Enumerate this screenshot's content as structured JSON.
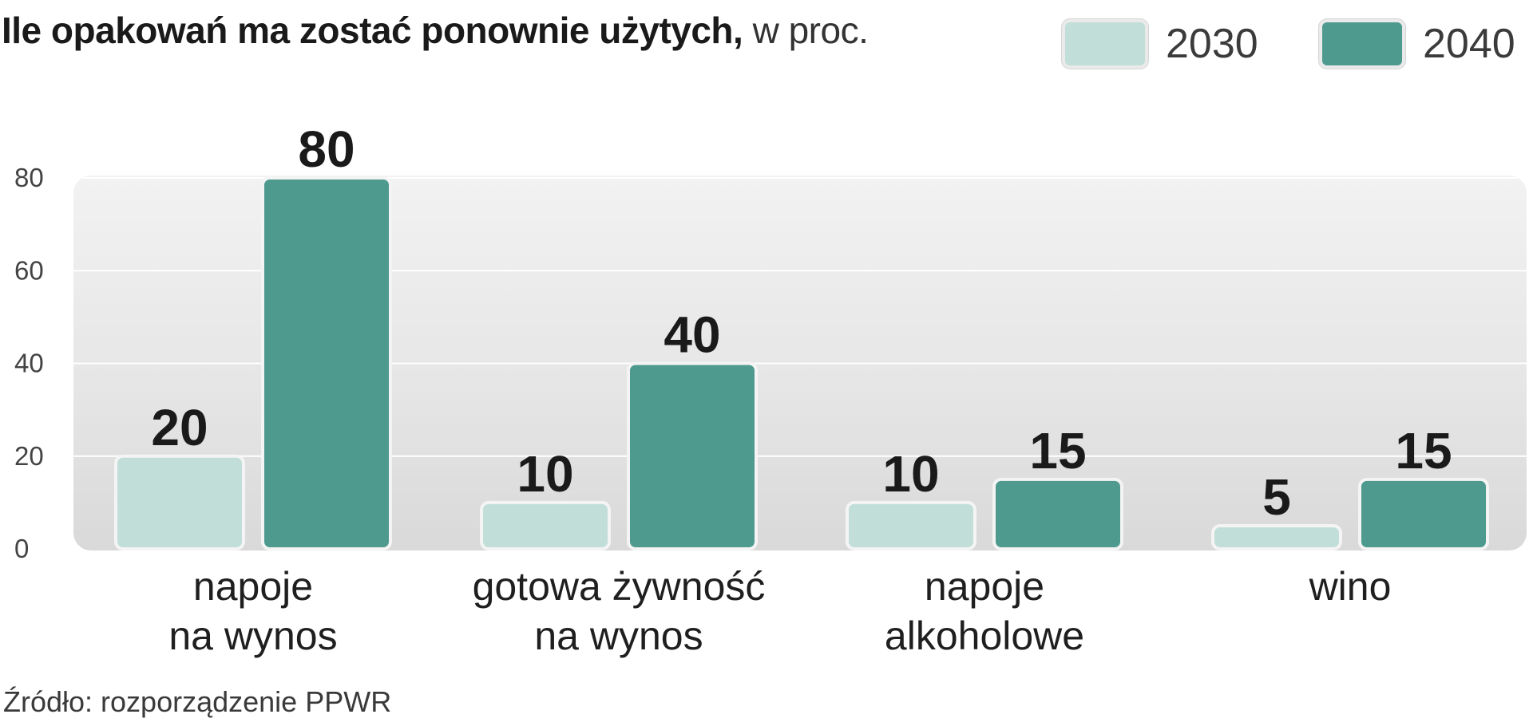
{
  "header": {
    "title_main": "Ile opakowań ma zostać ponownie użytych,",
    "title_unit": "w proc."
  },
  "legend": [
    {
      "label": "2030",
      "color": "#c1ded8"
    },
    {
      "label": "2040",
      "color": "#4e9a8f"
    }
  ],
  "chart_data": {
    "type": "bar",
    "title": "Ile opakowań ma zostać ponownie użytych, w proc.",
    "categories": [
      [
        "napoje",
        "na wynos"
      ],
      [
        "gotowa żywność",
        "na wynos"
      ],
      [
        "napoje",
        "alkoholowe"
      ],
      [
        "wino"
      ]
    ],
    "series": [
      {
        "name": "2030",
        "values": [
          20,
          10,
          10,
          5
        ],
        "color": "#c1ded8"
      },
      {
        "name": "2040",
        "values": [
          80,
          40,
          15,
          15
        ],
        "color": "#4e9a8f"
      }
    ],
    "yticks": [
      0,
      20,
      40,
      60,
      80
    ],
    "ylim": [
      0,
      80
    ],
    "data_labels": true,
    "grid": true,
    "legend_position": "top-right"
  },
  "source": "Źródło: rozporządzenie PPWR"
}
